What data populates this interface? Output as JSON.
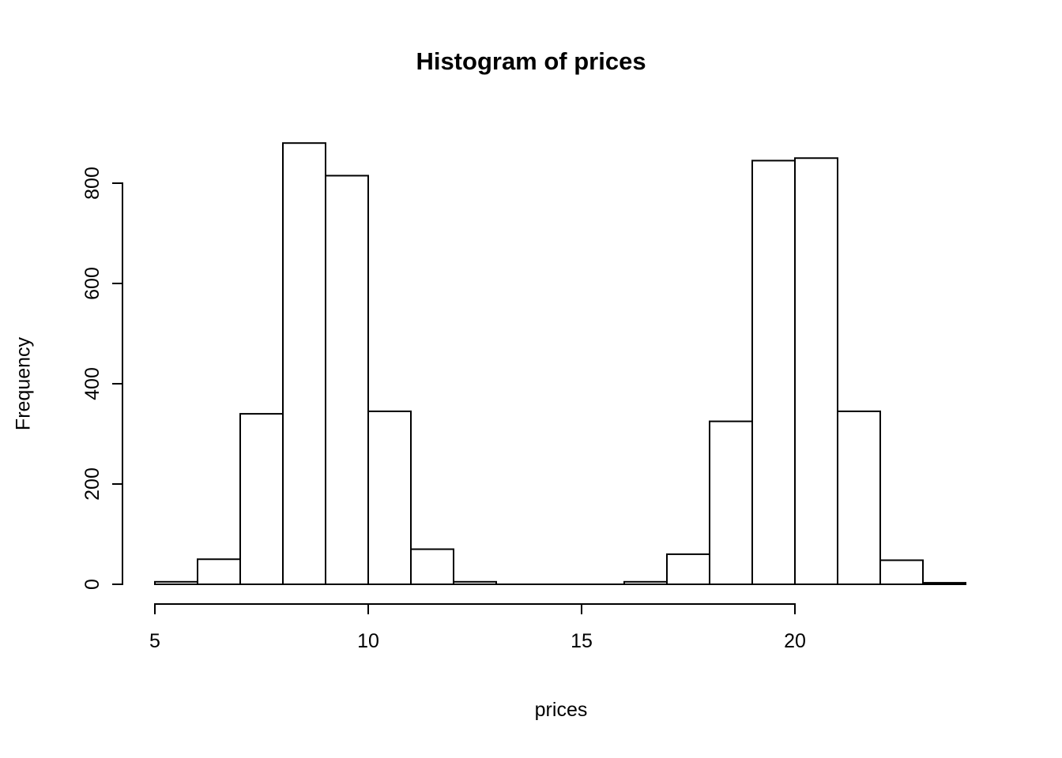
{
  "title": "Histogram of prices",
  "chart_data": {
    "type": "bar",
    "subtype": "histogram",
    "title": "Histogram of prices",
    "xlabel": "prices",
    "ylabel": "Frequency",
    "bin_start": 5,
    "bin_width": 1,
    "bin_edges": [
      5,
      6,
      7,
      8,
      9,
      10,
      11,
      12,
      13,
      14,
      15,
      16,
      17,
      18,
      19,
      20,
      21,
      22,
      23,
      24
    ],
    "values": [
      5,
      50,
      340,
      880,
      815,
      345,
      70,
      5,
      0,
      0,
      0,
      5,
      60,
      325,
      845,
      850,
      345,
      48,
      3
    ],
    "x_ticks": [
      5,
      10,
      15,
      20
    ],
    "y_ticks": [
      0,
      200,
      400,
      600,
      800
    ],
    "xlim": [
      5,
      24
    ],
    "ylim": [
      0,
      880
    ],
    "grid": false,
    "legend": "none",
    "bar_fill": "#ffffff",
    "bar_stroke": "#000000",
    "axis_color": "#000000",
    "background": "#ffffff"
  }
}
